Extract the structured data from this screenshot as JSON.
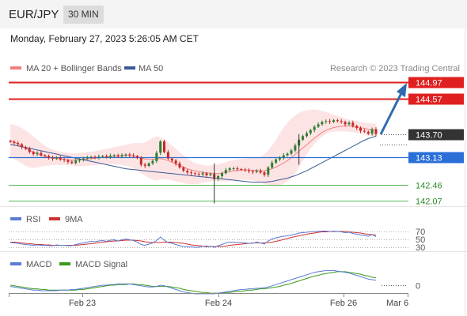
{
  "header": {
    "pair": "EUR/JPY",
    "timeframe": "30 MIN",
    "timestamp": "Monday, February 27, 2023 5:26:05 AM CET"
  },
  "legend": {
    "ma20": "MA 20 + Bollinger Bands",
    "ma50": "MA 50",
    "research": "Research © 2023 Trading Central",
    "rsi": "RSI",
    "rsi_ma": "9MA",
    "macd": "MACD",
    "macd_signal": "MACD Signal"
  },
  "colors": {
    "resistance": "#e02020",
    "current": "#333333",
    "pivot": "#2a6fd8",
    "support": "#58b858",
    "ma20": "#f08080",
    "bb_fill": "#fde4e4",
    "ma50": "#3b5998",
    "up_candle": "#2e7d32",
    "down_candle": "#c62828",
    "rsi": "#5b7bd5",
    "rsi_ma": "#d03030",
    "macd": "#5b7bd5",
    "macd_signal": "#3a9a1a",
    "arrow": "#2e6bb0"
  },
  "chart_data": [
    {
      "type": "line",
      "title": "EUR/JPY",
      "ylim": [
        141.95,
        145.15
      ],
      "x_ticks": [
        "Feb 23",
        "Feb 24",
        "Feb 26",
        "Mar 6"
      ],
      "levels": [
        {
          "kind": "resistance",
          "value": 144.97,
          "label": "144.97"
        },
        {
          "kind": "resistance",
          "value": 144.57,
          "label": "144.57"
        },
        {
          "kind": "current",
          "value": 143.7,
          "label": "143.70"
        },
        {
          "kind": "pivot",
          "value": 143.13,
          "label": "143.13"
        },
        {
          "kind": "support",
          "value": 142.46,
          "label": "142.46"
        },
        {
          "kind": "support",
          "value": 142.07,
          "label": "142.07"
        }
      ],
      "close": [
        143.51,
        143.48,
        143.45,
        143.38,
        143.34,
        143.26,
        143.21,
        143.24,
        143.18,
        143.16,
        143.12,
        143.1,
        143.13,
        143.08,
        143.06,
        143.02,
        142.99,
        143.05,
        143.08,
        143.1,
        143.12,
        143.14,
        143.13,
        143.15,
        143.16,
        143.14,
        143.17,
        143.18,
        143.15,
        143.18,
        143.2,
        143.18,
        143.16,
        143.12,
        142.95,
        142.92,
        142.98,
        143.04,
        143.24,
        143.52,
        143.26,
        143.1,
        143.05,
        142.98,
        142.88,
        142.8,
        142.76,
        142.74,
        142.72,
        142.71,
        142.74,
        142.69,
        142.72,
        142.6,
        142.67,
        142.74,
        142.82,
        142.86,
        142.86,
        142.84,
        142.83,
        142.81,
        142.79,
        142.77,
        142.8,
        142.76,
        142.7,
        142.88,
        143.0,
        143.08,
        143.12,
        143.18,
        143.22,
        143.3,
        143.42,
        143.56,
        143.65,
        143.72,
        143.8,
        143.88,
        143.94,
        144.0,
        144.02,
        144.0,
        144.04,
        144.02,
        144.0,
        143.94,
        143.98,
        143.9,
        143.85,
        143.78,
        143.76,
        143.71,
        143.82,
        143.7
      ],
      "ma20": [
        143.55,
        143.5,
        143.46,
        143.4,
        143.35,
        143.3,
        143.26,
        143.22,
        143.18,
        143.16,
        143.13,
        143.11,
        143.1,
        143.09,
        143.08,
        143.07,
        143.06,
        143.06,
        143.07,
        143.08,
        143.09,
        143.1,
        143.11,
        143.12,
        143.13,
        143.14,
        143.15,
        143.16,
        143.17,
        143.18,
        143.18,
        143.18,
        143.17,
        143.14,
        143.11,
        143.09,
        143.08,
        143.08,
        143.09,
        143.1,
        143.08,
        143.05,
        143.01,
        142.97,
        142.93,
        142.89,
        142.85,
        142.82,
        142.8,
        142.78,
        142.76,
        142.75,
        142.74,
        142.73,
        142.73,
        142.74,
        142.76,
        142.78,
        142.8,
        142.81,
        142.82,
        142.82,
        142.82,
        142.81,
        142.81,
        142.8,
        142.8,
        142.82,
        142.85,
        142.89,
        142.94,
        142.99,
        143.05,
        143.12,
        143.2,
        143.28,
        143.36,
        143.44,
        143.52,
        143.6,
        143.67,
        143.74,
        143.79,
        143.83,
        143.86,
        143.88,
        143.89,
        143.9,
        143.9,
        143.89,
        143.88,
        143.86,
        143.84,
        143.82,
        143.81,
        143.8
      ],
      "bb_upper": [
        143.95,
        143.93,
        143.9,
        143.85,
        143.79,
        143.72,
        143.64,
        143.56,
        143.48,
        143.42,
        143.36,
        143.32,
        143.29,
        143.27,
        143.25,
        143.24,
        143.23,
        143.23,
        143.24,
        143.25,
        143.26,
        143.27,
        143.28,
        143.3,
        143.32,
        143.34,
        143.36,
        143.38,
        143.4,
        143.42,
        143.44,
        143.46,
        143.48,
        143.48,
        143.48,
        143.5,
        143.55,
        143.6,
        143.65,
        143.62,
        143.57,
        143.5,
        143.42,
        143.34,
        143.26,
        143.18,
        143.1,
        143.04,
        142.99,
        142.96,
        142.94,
        142.93,
        142.93,
        142.94,
        142.96,
        142.98,
        143.01,
        143.04,
        143.06,
        143.08,
        143.09,
        143.1,
        143.11,
        143.12,
        143.13,
        143.14,
        143.2,
        143.3,
        143.42,
        143.56,
        143.72,
        143.86,
        143.98,
        144.08,
        144.16,
        144.22,
        144.26,
        144.28,
        144.3,
        144.3,
        144.29,
        144.27,
        144.24,
        144.21,
        144.18,
        144.15,
        144.12,
        144.09,
        144.06,
        144.04,
        144.02,
        144.0,
        143.98,
        143.97,
        143.96,
        143.95
      ],
      "bb_lower": [
        143.15,
        143.09,
        143.03,
        142.97,
        142.92,
        142.88,
        142.87,
        142.88,
        142.9,
        142.92,
        142.93,
        142.94,
        142.94,
        142.94,
        142.94,
        142.94,
        142.93,
        142.92,
        142.91,
        142.91,
        142.92,
        142.93,
        142.94,
        142.95,
        142.96,
        142.96,
        142.96,
        142.96,
        142.95,
        142.94,
        142.92,
        142.9,
        142.86,
        142.8,
        142.74,
        142.68,
        142.62,
        142.58,
        142.56,
        142.58,
        142.59,
        142.58,
        142.56,
        142.54,
        142.52,
        142.5,
        142.48,
        142.47,
        142.47,
        142.48,
        142.5,
        142.52,
        142.54,
        142.55,
        142.55,
        142.54,
        142.54,
        142.55,
        142.56,
        142.57,
        142.58,
        142.58,
        142.57,
        142.56,
        142.54,
        142.52,
        142.48,
        142.44,
        142.42,
        142.42,
        142.44,
        142.48,
        142.54,
        142.62,
        142.74,
        142.88,
        143.04,
        143.2,
        143.34,
        143.46,
        143.56,
        143.64,
        143.7,
        143.74,
        143.76,
        143.77,
        143.77,
        143.77,
        143.76,
        143.75,
        143.73,
        143.71,
        143.69,
        143.67,
        143.65,
        143.64
      ],
      "ma50": [
        143.45,
        143.43,
        143.41,
        143.39,
        143.37,
        143.35,
        143.33,
        143.31,
        143.29,
        143.27,
        143.25,
        143.23,
        143.21,
        143.19,
        143.17,
        143.15,
        143.13,
        143.11,
        143.09,
        143.07,
        143.05,
        143.03,
        143.01,
        142.99,
        142.97,
        142.95,
        142.93,
        142.91,
        142.89,
        142.87,
        142.85,
        142.84,
        142.83,
        142.82,
        142.81,
        142.8,
        142.79,
        142.78,
        142.77,
        142.76,
        142.75,
        142.74,
        142.73,
        142.72,
        142.71,
        142.7,
        142.69,
        142.68,
        142.67,
        142.66,
        142.65,
        142.64,
        142.63,
        142.62,
        142.61,
        142.6,
        142.59,
        142.58,
        142.57,
        142.56,
        142.55,
        142.54,
        142.53,
        142.52,
        142.52,
        142.52,
        142.52,
        142.53,
        142.54,
        142.56,
        142.58,
        142.6,
        142.62,
        142.65,
        142.68,
        142.72,
        142.76,
        142.8,
        142.85,
        142.9,
        142.95,
        143.0,
        143.05,
        143.1,
        143.15,
        143.2,
        143.25,
        143.3,
        143.35,
        143.4,
        143.45,
        143.5,
        143.55,
        143.59,
        143.62,
        143.65
      ]
    },
    {
      "type": "line",
      "title": "RSI",
      "ylim": [
        20,
        80
      ],
      "levels": [
        30,
        50,
        70
      ],
      "level_labels": [
        "70",
        "50",
        "30"
      ],
      "series": [
        {
          "name": "RSI",
          "values": [
            42,
            41,
            40,
            38,
            37,
            36,
            35,
            36,
            35,
            35,
            34,
            34,
            36,
            35,
            35,
            34,
            34,
            37,
            39,
            41,
            43,
            45,
            44,
            46,
            47,
            45,
            48,
            49,
            46,
            49,
            51,
            49,
            47,
            43,
            37,
            35,
            38,
            41,
            47,
            56,
            48,
            42,
            40,
            37,
            34,
            32,
            31,
            31,
            30,
            30,
            33,
            31,
            33,
            30,
            34,
            37,
            41,
            43,
            43,
            42,
            42,
            41,
            40,
            40,
            43,
            41,
            38,
            46,
            51,
            54,
            56,
            58,
            59,
            61,
            63,
            66,
            67,
            68,
            69,
            70,
            70,
            71,
            71,
            70,
            71,
            70,
            69,
            67,
            68,
            65,
            63,
            61,
            60,
            58,
            62,
            57
          ]
        },
        {
          "name": "9MA",
          "values": [
            43,
            43,
            42,
            41,
            40,
            39,
            38,
            37,
            37,
            36,
            36,
            35,
            35,
            35,
            35,
            35,
            35,
            35,
            36,
            37,
            38,
            39,
            40,
            42,
            43,
            44,
            45,
            46,
            46,
            47,
            48,
            48,
            48,
            47,
            46,
            44,
            43,
            42,
            42,
            42,
            43,
            43,
            43,
            42,
            41,
            40,
            38,
            36,
            35,
            34,
            33,
            33,
            32,
            32,
            32,
            32,
            33,
            35,
            36,
            37,
            38,
            39,
            40,
            41,
            41,
            41,
            41,
            42,
            43,
            45,
            47,
            50,
            52,
            55,
            57,
            59,
            61,
            63,
            65,
            66,
            68,
            69,
            69,
            70,
            70,
            70,
            70,
            70,
            69,
            68,
            67,
            66,
            64,
            63,
            62,
            61
          ]
        }
      ]
    },
    {
      "type": "line",
      "title": "MACD",
      "ylim": [
        -0.4,
        0.4
      ],
      "levels": [
        0
      ],
      "level_labels": [
        "0"
      ],
      "series": [
        {
          "name": "MACD",
          "values": [
            -0.02,
            -0.03,
            -0.04,
            -0.05,
            -0.06,
            -0.07,
            -0.08,
            -0.08,
            -0.09,
            -0.09,
            -0.09,
            -0.09,
            -0.09,
            -0.08,
            -0.08,
            -0.08,
            -0.07,
            -0.07,
            -0.06,
            -0.05,
            -0.04,
            -0.03,
            -0.02,
            -0.01,
            0.0,
            0.0,
            0.01,
            0.01,
            0.02,
            0.02,
            0.02,
            0.02,
            0.01,
            0.0,
            -0.01,
            -0.02,
            -0.03,
            -0.03,
            -0.02,
            0.0,
            -0.01,
            -0.03,
            -0.05,
            -0.07,
            -0.09,
            -0.11,
            -0.12,
            -0.13,
            -0.14,
            -0.14,
            -0.14,
            -0.14,
            -0.14,
            -0.14,
            -0.13,
            -0.12,
            -0.11,
            -0.1,
            -0.09,
            -0.08,
            -0.07,
            -0.07,
            -0.06,
            -0.06,
            -0.05,
            -0.05,
            -0.04,
            -0.03,
            -0.01,
            0.01,
            0.03,
            0.05,
            0.07,
            0.09,
            0.11,
            0.13,
            0.15,
            0.17,
            0.19,
            0.21,
            0.22,
            0.23,
            0.24,
            0.24,
            0.24,
            0.23,
            0.22,
            0.21,
            0.2,
            0.18,
            0.16,
            0.14,
            0.12,
            0.1,
            0.09,
            0.08
          ]
        },
        {
          "name": "MACD Signal",
          "values": [
            0.0,
            -0.01,
            -0.02,
            -0.03,
            -0.04,
            -0.05,
            -0.06,
            -0.06,
            -0.07,
            -0.07,
            -0.08,
            -0.08,
            -0.08,
            -0.08,
            -0.08,
            -0.08,
            -0.08,
            -0.08,
            -0.07,
            -0.07,
            -0.06,
            -0.05,
            -0.04,
            -0.03,
            -0.02,
            -0.01,
            0.0,
            0.0,
            0.01,
            0.01,
            0.01,
            0.02,
            0.02,
            0.01,
            0.01,
            0.0,
            -0.01,
            -0.02,
            -0.02,
            -0.02,
            -0.02,
            -0.02,
            -0.03,
            -0.04,
            -0.05,
            -0.07,
            -0.08,
            -0.09,
            -0.1,
            -0.11,
            -0.12,
            -0.12,
            -0.13,
            -0.13,
            -0.13,
            -0.13,
            -0.12,
            -0.12,
            -0.11,
            -0.1,
            -0.1,
            -0.09,
            -0.08,
            -0.08,
            -0.07,
            -0.06,
            -0.06,
            -0.05,
            -0.04,
            -0.03,
            -0.02,
            0.0,
            0.01,
            0.03,
            0.05,
            0.07,
            0.09,
            0.11,
            0.13,
            0.15,
            0.16,
            0.18,
            0.19,
            0.2,
            0.21,
            0.22,
            0.22,
            0.22,
            0.21,
            0.2,
            0.19,
            0.18,
            0.16,
            0.15,
            0.13,
            0.12
          ]
        }
      ]
    }
  ]
}
